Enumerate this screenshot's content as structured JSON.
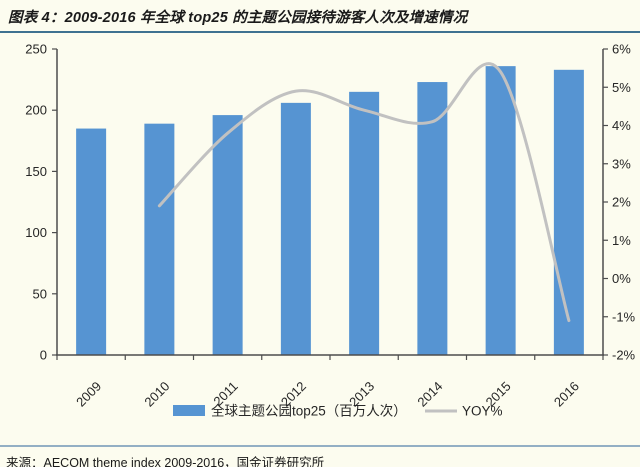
{
  "page": {
    "title": "图表 4：2009-2016 年全球 top25 的主题公园接待游客人次及增速情况",
    "source": "来源：AECOM theme index 2009-2016，国金证券研究所"
  },
  "colors": {
    "background": "#FCFCEF",
    "bar": "#5694D2",
    "line": "#C1C1C1",
    "axis": "#4D4D4D",
    "title_rule": "#3E7291",
    "footer_rule": "#93AFC4",
    "text": "#1A1A1A"
  },
  "chart_data": {
    "type": "bar",
    "subtype": "bar+line-combo",
    "title": "2009-2016 年全球 top25 的主题公园接待游客人次及增速情况",
    "categories": [
      "2009",
      "2010",
      "2011",
      "2012",
      "2013",
      "2014",
      "2015",
      "2016"
    ],
    "series": [
      {
        "name": "全球主题公园top25（百万人次）",
        "type": "bar",
        "yaxis": "left",
        "color": "#5694D2",
        "values": [
          185,
          189,
          196,
          206,
          215,
          223,
          236,
          233
        ]
      },
      {
        "name": "YOY%",
        "type": "line",
        "yaxis": "right",
        "color": "#C1C1C1",
        "smooth": true,
        "values": [
          null,
          1.9,
          3.8,
          4.9,
          4.4,
          4.1,
          5.4,
          -1.1
        ]
      }
    ],
    "left_axis": {
      "min": 0,
      "max": 250,
      "step": 50,
      "tick_labels": [
        "0",
        "50",
        "100",
        "150",
        "200",
        "250"
      ]
    },
    "right_axis": {
      "min": -2,
      "max": 6,
      "step": 1,
      "tick_labels": [
        "-2%",
        "-1%",
        "0%",
        "1%",
        "2%",
        "3%",
        "4%",
        "5%",
        "6%"
      ]
    },
    "grid": false,
    "legend_position": "bottom",
    "legend": [
      "全球主题公园top25（百万人次）",
      "YOY%"
    ]
  }
}
